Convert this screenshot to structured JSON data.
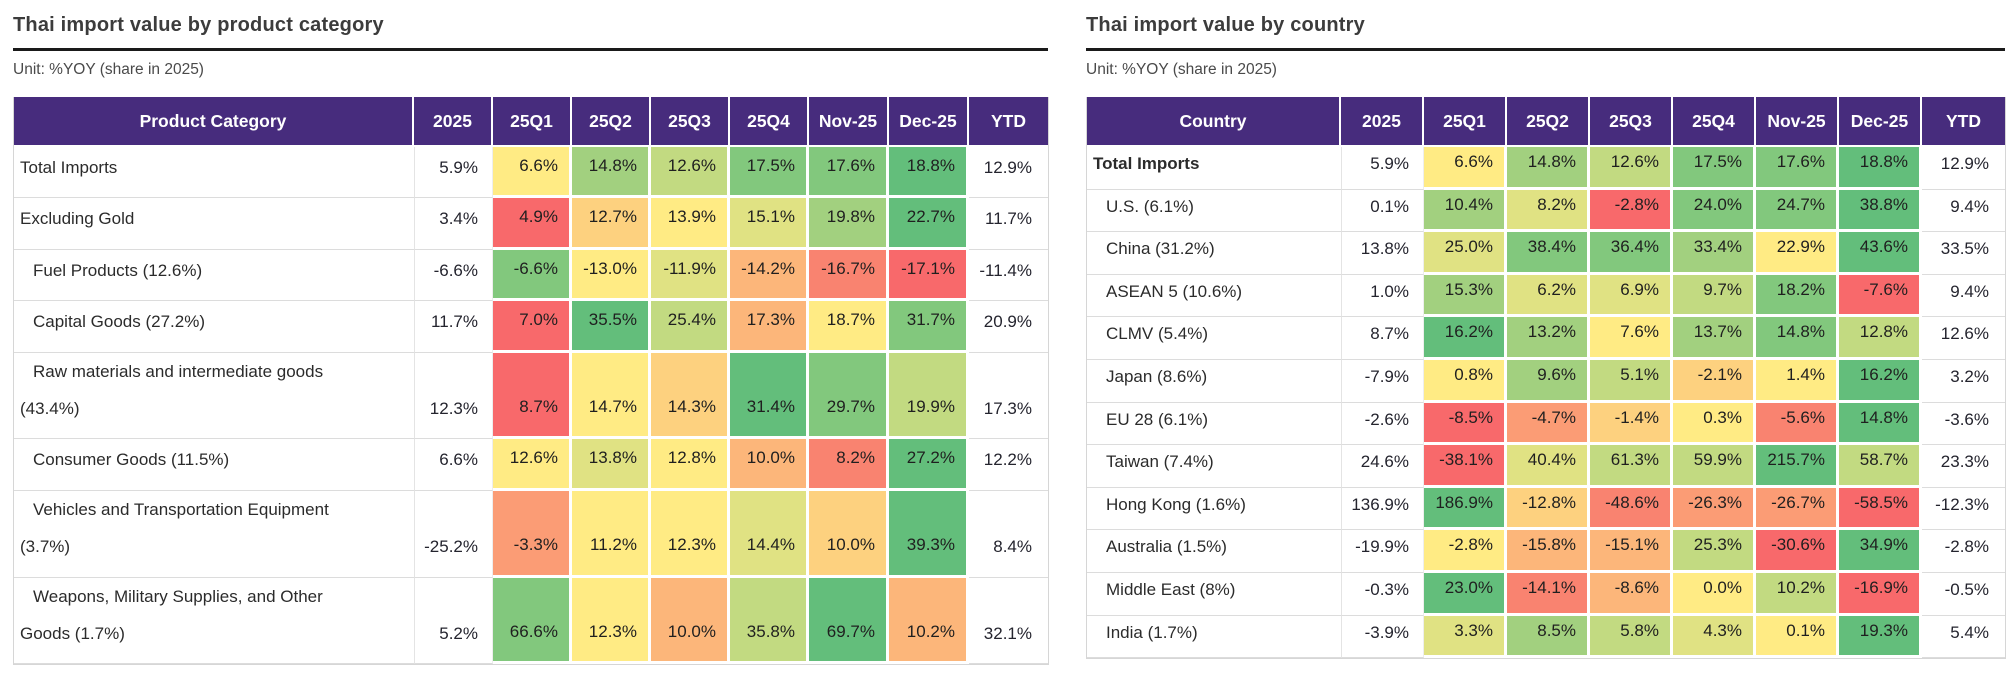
{
  "styles": {
    "header_bg": "#472c7d",
    "header_text": "#ffffff",
    "title_color": "#3c3c3c",
    "rule_color": "#1a1a1a",
    "grid_color": "#dcdcdc",
    "palette": [
      "#F8696B",
      "#F98370",
      "#FB9C75",
      "#FCB67A",
      "#FDD17F",
      "#FFEB84",
      "#E0E283",
      "#C2DA81",
      "#A2D07F",
      "#82C87D",
      "#63BE7B"
    ]
  },
  "chart_data": [
    {
      "type": "heatmap",
      "title": "Thai import value by product category",
      "unit_label": "Unit: %YOY (share in 2025)",
      "row_header": "Product Category",
      "columns": [
        "2025",
        "25Q1",
        "25Q2",
        "25Q3",
        "25Q4",
        "Nov-25",
        "Dec-25",
        "YTD"
      ],
      "note": "2025 and YTD columns are uncolored; heat levels are 0(red)..10(green) per row",
      "rows": [
        {
          "label": "Total Imports",
          "indent": false,
          "bold": false,
          "values": [
            5.9,
            6.6,
            14.8,
            12.6,
            17.5,
            17.6,
            18.8,
            12.9
          ],
          "levels": [
            null,
            5,
            8,
            7,
            9,
            9,
            10,
            null
          ]
        },
        {
          "label": "Excluding Gold",
          "indent": false,
          "bold": false,
          "values": [
            3.4,
            4.9,
            12.7,
            13.9,
            15.1,
            19.8,
            22.7,
            11.7
          ],
          "levels": [
            null,
            0,
            4,
            5,
            6,
            8,
            10,
            null
          ]
        },
        {
          "label": "Fuel Products (12.6%)",
          "indent": true,
          "bold": false,
          "values": [
            -6.6,
            -6.6,
            -13.0,
            -11.9,
            -14.2,
            -16.7,
            -17.1,
            -11.4
          ],
          "levels": [
            null,
            9,
            5,
            6,
            3,
            1,
            0,
            null
          ]
        },
        {
          "label": "Capital Goods (27.2%)",
          "indent": true,
          "bold": false,
          "values": [
            11.7,
            7.0,
            35.5,
            25.4,
            17.3,
            18.7,
            31.7,
            20.9
          ],
          "levels": [
            null,
            0,
            10,
            7,
            3,
            5,
            9,
            null
          ]
        },
        {
          "label": "Raw materials and intermediate goods (43.4%)",
          "indent": true,
          "bold": false,
          "values": [
            12.3,
            8.7,
            14.7,
            14.3,
            31.4,
            29.7,
            19.9,
            17.3
          ],
          "levels": [
            null,
            0,
            5,
            4,
            10,
            9,
            7,
            null
          ]
        },
        {
          "label": "Consumer Goods (11.5%)",
          "indent": true,
          "bold": false,
          "values": [
            6.6,
            12.6,
            13.8,
            12.8,
            10.0,
            8.2,
            27.2,
            12.2
          ],
          "levels": [
            null,
            5,
            6,
            5,
            3,
            1,
            10,
            null
          ]
        },
        {
          "label": "Vehicles and Transportation Equipment (3.7%)",
          "indent": true,
          "bold": false,
          "values": [
            -25.2,
            -3.3,
            11.2,
            12.3,
            14.4,
            10.0,
            39.3,
            8.4
          ],
          "levels": [
            null,
            2,
            5,
            5,
            6,
            4,
            10,
            null
          ]
        },
        {
          "label": "Weapons, Military Supplies, and Other Goods (1.7%)",
          "indent": true,
          "bold": false,
          "values": [
            5.2,
            66.6,
            12.3,
            10.0,
            35.8,
            69.7,
            10.2,
            32.1
          ],
          "levels": [
            null,
            9,
            5,
            3,
            7,
            10,
            3,
            null
          ]
        }
      ]
    },
    {
      "type": "heatmap",
      "title": "Thai import value by country",
      "unit_label": "Unit: %YOY (share in 2025)",
      "row_header": "Country",
      "columns": [
        "2025",
        "25Q1",
        "25Q2",
        "25Q3",
        "25Q4",
        "Nov-25",
        "Dec-25",
        "YTD"
      ],
      "note": "2025 and YTD columns are uncolored; heat levels are 0(red)..10(green) per row",
      "rows": [
        {
          "label": "Total Imports",
          "indent": false,
          "bold": true,
          "values": [
            5.9,
            6.6,
            14.8,
            12.6,
            17.5,
            17.6,
            18.8,
            12.9
          ],
          "levels": [
            null,
            5,
            8,
            7,
            9,
            9,
            10,
            null
          ]
        },
        {
          "label": "U.S. (6.1%)",
          "indent": true,
          "bold": false,
          "values": [
            0.1,
            10.4,
            8.2,
            -2.8,
            24.0,
            24.7,
            38.8,
            9.4
          ],
          "levels": [
            null,
            8,
            6,
            0,
            9,
            9,
            10,
            null
          ]
        },
        {
          "label": "China (31.2%)",
          "indent": true,
          "bold": false,
          "values": [
            13.8,
            25.0,
            38.4,
            36.4,
            33.4,
            22.9,
            43.6,
            33.5
          ],
          "levels": [
            null,
            6,
            9,
            9,
            8,
            5,
            10,
            null
          ]
        },
        {
          "label": "ASEAN 5 (10.6%)",
          "indent": true,
          "bold": false,
          "values": [
            1.0,
            15.3,
            6.2,
            6.9,
            9.7,
            18.2,
            -7.6,
            9.4
          ],
          "levels": [
            null,
            8,
            6,
            6,
            7,
            9,
            0,
            null
          ]
        },
        {
          "label": "CLMV (5.4%)",
          "indent": true,
          "bold": false,
          "values": [
            8.7,
            16.2,
            13.2,
            7.6,
            13.7,
            14.8,
            12.8,
            12.6
          ],
          "levels": [
            null,
            10,
            8,
            5,
            8,
            9,
            7,
            null
          ]
        },
        {
          "label": "Japan (8.6%)",
          "indent": true,
          "bold": false,
          "values": [
            -7.9,
            0.8,
            9.6,
            5.1,
            -2.1,
            1.4,
            16.2,
            3.2
          ],
          "levels": [
            null,
            5,
            8,
            7,
            4,
            5,
            10,
            null
          ]
        },
        {
          "label": "EU 28 (6.1%)",
          "indent": true,
          "bold": false,
          "values": [
            -2.6,
            -8.5,
            -4.7,
            -1.4,
            0.3,
            -5.6,
            14.8,
            -3.6
          ],
          "levels": [
            null,
            0,
            2,
            4,
            5,
            1,
            10,
            null
          ]
        },
        {
          "label": "Taiwan (7.4%)",
          "indent": true,
          "bold": false,
          "values": [
            24.6,
            -38.1,
            40.4,
            61.3,
            59.9,
            215.7,
            58.7,
            23.3
          ],
          "levels": [
            null,
            0,
            6,
            7,
            7,
            10,
            7,
            null
          ]
        },
        {
          "label": "Hong Kong (1.6%)",
          "indent": true,
          "bold": false,
          "values": [
            136.9,
            186.9,
            -12.8,
            -48.6,
            -26.3,
            -26.7,
            -58.5,
            -12.3
          ],
          "levels": [
            null,
            10,
            4,
            1,
            2,
            2,
            0,
            null
          ]
        },
        {
          "label": "Australia (1.5%)",
          "indent": true,
          "bold": false,
          "values": [
            -19.9,
            -2.8,
            -15.8,
            -15.1,
            25.3,
            -30.6,
            34.9,
            -2.8
          ],
          "levels": [
            null,
            5,
            3,
            3,
            7,
            0,
            10,
            null
          ]
        },
        {
          "label": "Middle East (8%)",
          "indent": true,
          "bold": false,
          "values": [
            -0.3,
            23.0,
            -14.1,
            -8.6,
            0.0,
            10.2,
            -16.9,
            -0.5
          ],
          "levels": [
            null,
            10,
            1,
            3,
            5,
            7,
            0,
            null
          ]
        },
        {
          "label": "India (1.7%)",
          "indent": true,
          "bold": false,
          "values": [
            -3.9,
            3.3,
            8.5,
            5.8,
            4.3,
            0.1,
            19.3,
            5.4
          ],
          "levels": [
            null,
            6,
            8,
            7,
            6,
            5,
            10,
            null
          ]
        }
      ]
    }
  ]
}
